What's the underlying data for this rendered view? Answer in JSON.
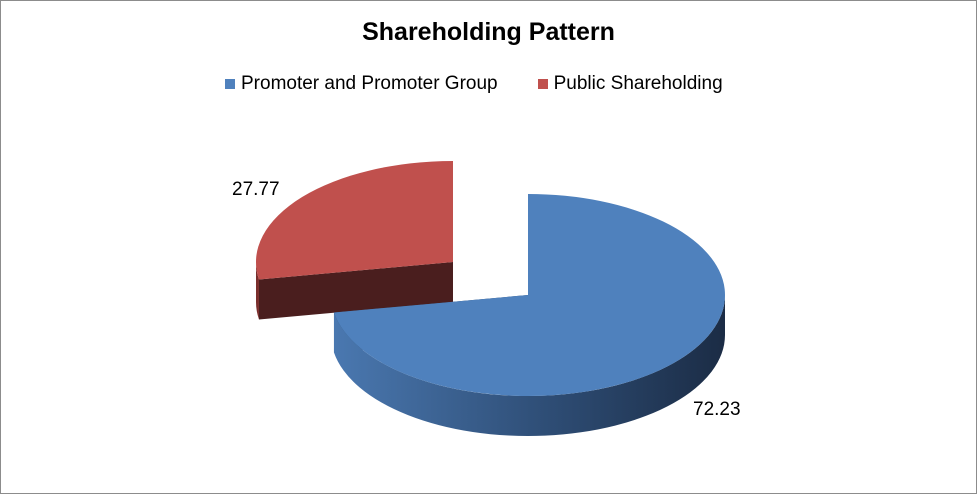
{
  "chart_data": {
    "type": "pie",
    "style": "3d-exploded",
    "title": "Shareholding Pattern",
    "legend_position": "top",
    "categories": [
      "Promoter and Promoter Group",
      "Public Shareholding"
    ],
    "values": [
      72.23,
      27.77
    ],
    "data_labels": [
      "72.23",
      "27.77"
    ],
    "colors": [
      "#4f81bd",
      "#c0504d"
    ]
  }
}
